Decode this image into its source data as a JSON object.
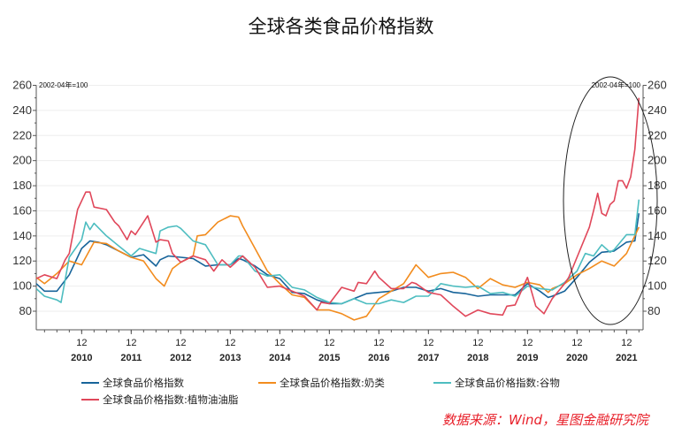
{
  "chart_data": {
    "type": "line",
    "title": "全球各类食品价格指数",
    "unit_note_left": "2002-04年=100",
    "unit_note_right": "2002-04年=100",
    "ylim": [
      65,
      260
    ],
    "yticks": [
      80,
      100,
      120,
      140,
      160,
      180,
      200,
      220,
      240,
      260
    ],
    "xlim": [
      "2010-01",
      "2022-04"
    ],
    "xticks": [
      {
        "month": "12",
        "year": "2010"
      },
      {
        "month": "12",
        "year": "2011"
      },
      {
        "month": "12",
        "year": "2012"
      },
      {
        "month": "12",
        "year": "2013"
      },
      {
        "month": "12",
        "year": "2014"
      },
      {
        "month": "12",
        "year": "2015"
      },
      {
        "month": "12",
        "year": "2016"
      },
      {
        "month": "12",
        "year": "2017"
      },
      {
        "month": "12",
        "year": "2018"
      },
      {
        "month": "12",
        "year": "2019"
      },
      {
        "month": "12",
        "year": "2020"
      },
      {
        "month": "12",
        "year": "2021"
      }
    ],
    "grid": "horizontal",
    "legend_position": "bottom",
    "annotation": "ellipse highlighting 2020-2021 surge",
    "series": [
      {
        "name": "全球食品价格指数",
        "color": "#17649a",
        "data": [
          [
            "2010-01",
            102
          ],
          [
            "2010-03",
            96
          ],
          [
            "2010-06",
            96
          ],
          [
            "2010-09",
            109
          ],
          [
            "2010-12",
            130
          ],
          [
            "2011-02",
            136
          ],
          [
            "2011-04",
            135
          ],
          [
            "2011-06",
            133
          ],
          [
            "2011-09",
            128
          ],
          [
            "2011-12",
            123
          ],
          [
            "2012-03",
            125
          ],
          [
            "2012-06",
            116
          ],
          [
            "2012-07",
            121
          ],
          [
            "2012-09",
            124
          ],
          [
            "2012-12",
            123
          ],
          [
            "2013-03",
            122
          ],
          [
            "2013-06",
            116
          ],
          [
            "2013-09",
            117
          ],
          [
            "2013-12",
            117
          ],
          [
            "2014-02",
            122
          ],
          [
            "2014-03",
            121
          ],
          [
            "2014-06",
            116
          ],
          [
            "2014-09",
            109
          ],
          [
            "2014-12",
            106
          ],
          [
            "2015-03",
            95
          ],
          [
            "2015-06",
            94
          ],
          [
            "2015-09",
            89
          ],
          [
            "2015-12",
            86
          ],
          [
            "2016-03",
            86
          ],
          [
            "2016-06",
            90
          ],
          [
            "2016-09",
            94
          ],
          [
            "2016-12",
            95
          ],
          [
            "2017-03",
            96
          ],
          [
            "2017-06",
            99
          ],
          [
            "2017-09",
            99
          ],
          [
            "2017-12",
            96
          ],
          [
            "2018-03",
            98
          ],
          [
            "2018-06",
            95
          ],
          [
            "2018-09",
            94
          ],
          [
            "2018-12",
            92
          ],
          [
            "2019-03",
            93
          ],
          [
            "2019-06",
            93
          ],
          [
            "2019-09",
            93
          ],
          [
            "2019-12",
            102
          ],
          [
            "2020-03",
            96
          ],
          [
            "2020-05",
            91
          ],
          [
            "2020-06",
            92
          ],
          [
            "2020-09",
            96
          ],
          [
            "2020-12",
            107
          ],
          [
            "2021-03",
            119
          ],
          [
            "2021-06",
            127
          ],
          [
            "2021-09",
            128
          ],
          [
            "2021-12",
            135
          ],
          [
            "2022-02",
            136
          ],
          [
            "2022-03",
            158
          ]
        ]
      },
      {
        "name": "全球食品价格指数:奶类",
        "color": "#f28c1e",
        "data": [
          [
            "2010-01",
            107
          ],
          [
            "2010-03",
            102
          ],
          [
            "2010-06",
            110
          ],
          [
            "2010-09",
            120
          ],
          [
            "2010-12",
            117
          ],
          [
            "2011-03",
            135
          ],
          [
            "2011-06",
            134
          ],
          [
            "2011-09",
            128
          ],
          [
            "2011-12",
            123
          ],
          [
            "2012-03",
            120
          ],
          [
            "2012-06",
            106
          ],
          [
            "2012-08",
            100
          ],
          [
            "2012-10",
            114
          ],
          [
            "2012-12",
            119
          ],
          [
            "2013-03",
            124
          ],
          [
            "2013-04",
            140
          ],
          [
            "2013-06",
            141
          ],
          [
            "2013-09",
            151
          ],
          [
            "2013-12",
            156
          ],
          [
            "2014-02",
            155
          ],
          [
            "2014-03",
            148
          ],
          [
            "2014-06",
            130
          ],
          [
            "2014-09",
            112
          ],
          [
            "2014-12",
            102
          ],
          [
            "2015-03",
            93
          ],
          [
            "2015-06",
            91
          ],
          [
            "2015-09",
            81
          ],
          [
            "2015-12",
            81
          ],
          [
            "2016-03",
            78
          ],
          [
            "2016-06",
            73
          ],
          [
            "2016-09",
            76
          ],
          [
            "2016-12",
            90
          ],
          [
            "2017-03",
            96
          ],
          [
            "2017-06",
            102
          ],
          [
            "2017-09",
            117
          ],
          [
            "2017-12",
            107
          ],
          [
            "2018-03",
            110
          ],
          [
            "2018-06",
            111
          ],
          [
            "2018-09",
            107
          ],
          [
            "2018-12",
            98
          ],
          [
            "2019-03",
            106
          ],
          [
            "2019-06",
            101
          ],
          [
            "2019-09",
            99
          ],
          [
            "2019-12",
            103
          ],
          [
            "2020-03",
            101
          ],
          [
            "2020-05",
            95
          ],
          [
            "2020-06",
            98
          ],
          [
            "2020-09",
            102
          ],
          [
            "2020-12",
            109
          ],
          [
            "2021-03",
            114
          ],
          [
            "2021-06",
            120
          ],
          [
            "2021-09",
            116
          ],
          [
            "2021-12",
            126
          ],
          [
            "2022-03",
            147
          ]
        ]
      },
      {
        "name": "全球食品价格指数:谷物",
        "color": "#4dbdc0",
        "data": [
          [
            "2010-01",
            98
          ],
          [
            "2010-03",
            92
          ],
          [
            "2010-06",
            89
          ],
          [
            "2010-07",
            87
          ],
          [
            "2010-09",
            123
          ],
          [
            "2010-12",
            137
          ],
          [
            "2011-01",
            151
          ],
          [
            "2011-02",
            145
          ],
          [
            "2011-03",
            150
          ],
          [
            "2011-06",
            140
          ],
          [
            "2011-09",
            132
          ],
          [
            "2011-12",
            124
          ],
          [
            "2012-02",
            130
          ],
          [
            "2012-06",
            126
          ],
          [
            "2012-07",
            144
          ],
          [
            "2012-09",
            147
          ],
          [
            "2012-11",
            148
          ],
          [
            "2012-12",
            146
          ],
          [
            "2013-03",
            136
          ],
          [
            "2013-06",
            133
          ],
          [
            "2013-09",
            117
          ],
          [
            "2013-12",
            117
          ],
          [
            "2014-02",
            124
          ],
          [
            "2014-03",
            124
          ],
          [
            "2014-06",
            112
          ],
          [
            "2014-09",
            108
          ],
          [
            "2014-12",
            109
          ],
          [
            "2015-03",
            99
          ],
          [
            "2015-06",
            97
          ],
          [
            "2015-09",
            91
          ],
          [
            "2015-12",
            87
          ],
          [
            "2016-03",
            86
          ],
          [
            "2016-06",
            90
          ],
          [
            "2016-09",
            86
          ],
          [
            "2016-12",
            86
          ],
          [
            "2017-03",
            89
          ],
          [
            "2017-06",
            87
          ],
          [
            "2017-09",
            92
          ],
          [
            "2017-12",
            92
          ],
          [
            "2018-03",
            102
          ],
          [
            "2018-06",
            100
          ],
          [
            "2018-09",
            99
          ],
          [
            "2018-12",
            100
          ],
          [
            "2019-03",
            94
          ],
          [
            "2019-06",
            95
          ],
          [
            "2019-09",
            92
          ],
          [
            "2019-12",
            100
          ],
          [
            "2020-03",
            98
          ],
          [
            "2020-06",
            97
          ],
          [
            "2020-09",
            103
          ],
          [
            "2020-12",
            112
          ],
          [
            "2021-02",
            126
          ],
          [
            "2021-04",
            124
          ],
          [
            "2021-06",
            133
          ],
          [
            "2021-08",
            127
          ],
          [
            "2021-09",
            129
          ],
          [
            "2021-12",
            141
          ],
          [
            "2022-02",
            141
          ],
          [
            "2022-03",
            169
          ]
        ]
      },
      {
        "name": "全球食品价格指数:植物油油脂",
        "color": "#e0475a",
        "data": [
          [
            "2010-01",
            106
          ],
          [
            "2010-03",
            109
          ],
          [
            "2010-06",
            106
          ],
          [
            "2010-08",
            121
          ],
          [
            "2010-09",
            126
          ],
          [
            "2010-11",
            161
          ],
          [
            "2011-01",
            175
          ],
          [
            "2011-02",
            175
          ],
          [
            "2011-03",
            163
          ],
          [
            "2011-06",
            161
          ],
          [
            "2011-08",
            151
          ],
          [
            "2011-09",
            148
          ],
          [
            "2011-11",
            137
          ],
          [
            "2011-12",
            144
          ],
          [
            "2012-01",
            141
          ],
          [
            "2012-04",
            156
          ],
          [
            "2012-06",
            135
          ],
          [
            "2012-07",
            137
          ],
          [
            "2012-09",
            136
          ],
          [
            "2012-10",
            126
          ],
          [
            "2012-12",
            119
          ],
          [
            "2013-03",
            124
          ],
          [
            "2013-06",
            121
          ],
          [
            "2013-08",
            112
          ],
          [
            "2013-10",
            121
          ],
          [
            "2013-12",
            115
          ],
          [
            "2014-03",
            124
          ],
          [
            "2014-06",
            115
          ],
          [
            "2014-09",
            99
          ],
          [
            "2014-12",
            100
          ],
          [
            "2015-03",
            96
          ],
          [
            "2015-06",
            92
          ],
          [
            "2015-09",
            81
          ],
          [
            "2015-10",
            87
          ],
          [
            "2015-12",
            86
          ],
          [
            "2016-03",
            99
          ],
          [
            "2016-06",
            96
          ],
          [
            "2016-07",
            103
          ],
          [
            "2016-09",
            102
          ],
          [
            "2016-11",
            112
          ],
          [
            "2016-12",
            107
          ],
          [
            "2017-03",
            98
          ],
          [
            "2017-06",
            98
          ],
          [
            "2017-08",
            103
          ],
          [
            "2017-09",
            102
          ],
          [
            "2017-12",
            95
          ],
          [
            "2018-03",
            93
          ],
          [
            "2018-06",
            84
          ],
          [
            "2018-09",
            76
          ],
          [
            "2018-12",
            81
          ],
          [
            "2019-03",
            78
          ],
          [
            "2019-06",
            77
          ],
          [
            "2019-07",
            84
          ],
          [
            "2019-09",
            85
          ],
          [
            "2019-12",
            107
          ],
          [
            "2020-02",
            84
          ],
          [
            "2020-04",
            78
          ],
          [
            "2020-06",
            90
          ],
          [
            "2020-09",
            102
          ],
          [
            "2020-10",
            107
          ],
          [
            "2020-12",
            123
          ],
          [
            "2021-03",
            147
          ],
          [
            "2021-04",
            160
          ],
          [
            "2021-05",
            174
          ],
          [
            "2021-06",
            158
          ],
          [
            "2021-07",
            156
          ],
          [
            "2021-08",
            165
          ],
          [
            "2021-09",
            168
          ],
          [
            "2021-10",
            184
          ],
          [
            "2021-11",
            184
          ],
          [
            "2021-12",
            178
          ],
          [
            "2022-01",
            187
          ],
          [
            "2022-02",
            209
          ],
          [
            "2022-03",
            250
          ]
        ]
      }
    ]
  },
  "source": "数据来源：Wind，星图金融研究院"
}
